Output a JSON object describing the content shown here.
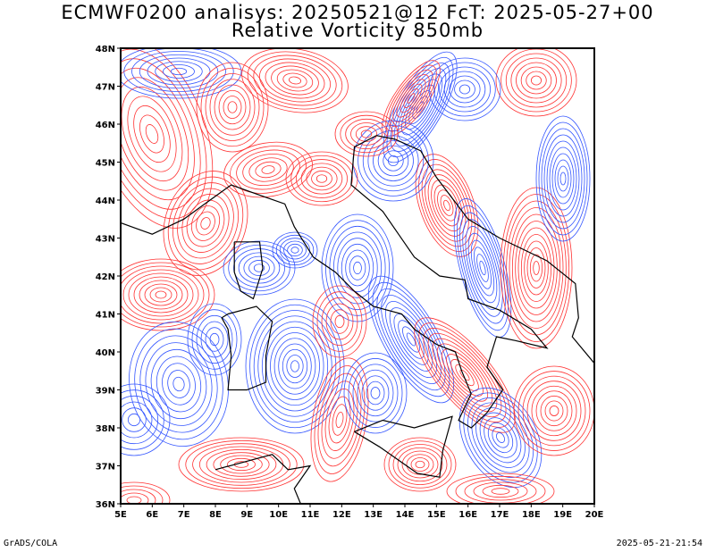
{
  "title": {
    "line1": "ECMWF0200 analisys: 20250521@12 FcT: 2025-05-27+00",
    "line2": "Relative Vorticity 850mb"
  },
  "map": {
    "lon_range": [
      5,
      20
    ],
    "lat_range": [
      36,
      48
    ],
    "lon_labels": [
      "5E",
      "6E",
      "7E",
      "8E",
      "9E",
      "10E",
      "11E",
      "12E",
      "13E",
      "14E",
      "15E",
      "16E",
      "17E",
      "18E",
      "19E",
      "20E"
    ],
    "lat_labels": [
      "48N",
      "47N",
      "46N",
      "45N",
      "44N",
      "43N",
      "42N",
      "41N",
      "40N",
      "39N",
      "38N",
      "37N",
      "36N"
    ],
    "colors": {
      "positive": "#ff3333",
      "negative": "#3355ff",
      "coast": "#000000"
    }
  },
  "footer": {
    "left": "GrADS/COLA",
    "right": "2025-05-21-21:54"
  }
}
